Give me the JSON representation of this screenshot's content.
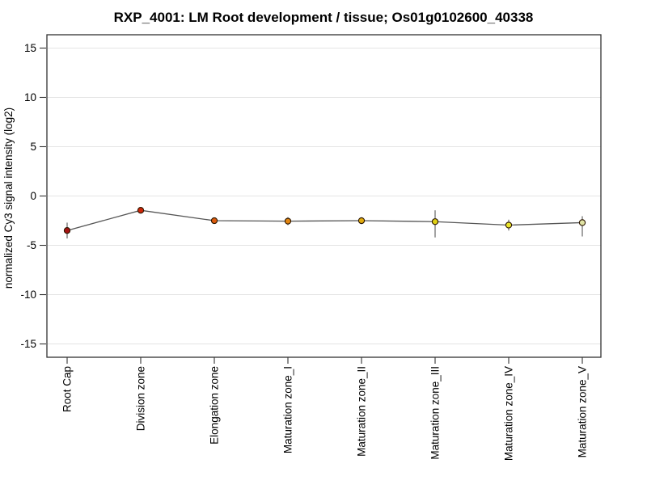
{
  "page": {
    "background": "#ffffff"
  },
  "chart_data": {
    "type": "line",
    "title": "RXP_4001: LM Root development / tissue; Os01g0102600_40338",
    "ylabel": "normalized Cy3 signal intensity (log2)",
    "xlabel": "",
    "categories": [
      "Root Cap",
      "Division zone",
      "Elongation zone",
      "Maturation zone_I",
      "Maturation zone_II",
      "Maturation zone_III",
      "Maturation zone_IV",
      "Maturation zone_V"
    ],
    "series": [
      {
        "name": "Os01g0102600_40338",
        "values": [
          -3.5,
          -1.45,
          -2.5,
          -2.55,
          -2.5,
          -2.6,
          -2.95,
          -2.7
        ],
        "error_upper": [
          0.8,
          0.25,
          0.3,
          0.4,
          0.35,
          1.15,
          0.55,
          0.65
        ],
        "error_lower": [
          0.8,
          0.25,
          0.3,
          0.4,
          0.35,
          1.6,
          0.55,
          1.4
        ],
        "point_colors": [
          "#a61313",
          "#ce2508",
          "#dc5a0c",
          "#e28511",
          "#e2ab0e",
          "#ded013",
          "#e9e52b",
          "#e0e3a4"
        ]
      }
    ],
    "yticks": [
      15,
      10,
      5,
      0,
      -5,
      -10,
      -15
    ],
    "ytick_labels": [
      "15",
      "10",
      "5",
      "0",
      "-5",
      "-10",
      "-15"
    ],
    "ylim": [
      -16.35,
      16.35
    ],
    "grid": true,
    "legend_position": "none",
    "colors": {
      "background": "#ffffff",
      "grid": "#e4e4e4",
      "frame": "#333333",
      "tick": "#333333",
      "line": "#555555",
      "error_bar": "#8c8c8c",
      "marker_outline": "#2b1600",
      "text": "#000000"
    }
  }
}
